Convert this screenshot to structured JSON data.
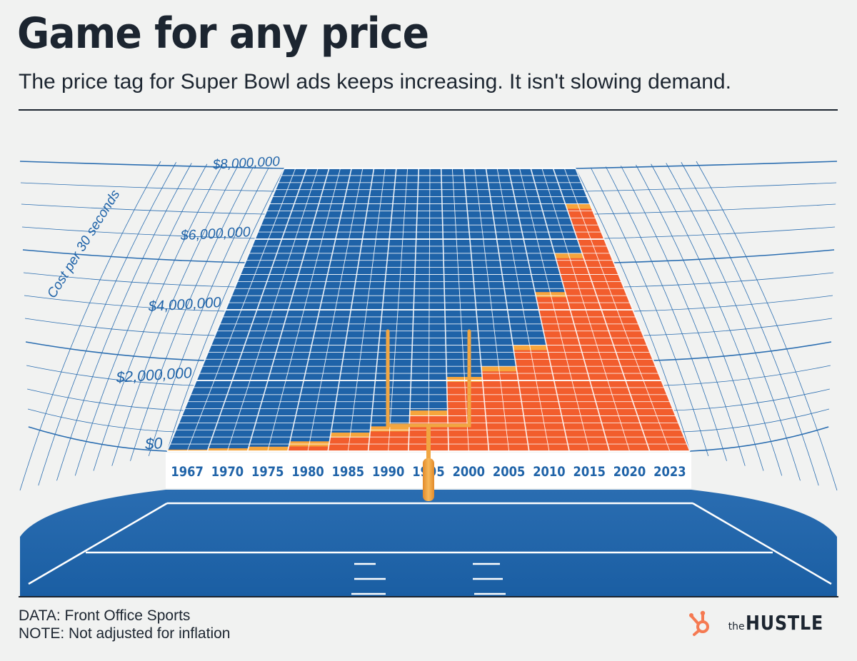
{
  "header": {
    "title": "Game for any price",
    "subtitle": "The price tag for Super Bowl ads keeps increasing. It isn't slowing demand."
  },
  "chart_data": {
    "type": "bar",
    "title": "Game for any price",
    "subtitle": "The price tag for Super Bowl ads keeps increasing. It isn't slowing demand.",
    "ylabel": "Cost per 30 seconds",
    "ylim": [
      0,
      8000000
    ],
    "y_ticks": [
      0,
      2000000,
      4000000,
      6000000,
      8000000
    ],
    "y_tick_labels": [
      "$0",
      "$2,000,000",
      "$4,000,000",
      "$6,000,000",
      "$8,000,000"
    ],
    "categories": [
      "1967",
      "1970",
      "1975",
      "1980",
      "1985",
      "1990",
      "1995",
      "2000",
      "2005",
      "2010",
      "2015",
      "2020",
      "2023"
    ],
    "values": [
      42000,
      78000,
      125000,
      275000,
      525000,
      700000,
      1150000,
      2100000,
      2400000,
      3000000,
      4500000,
      5600000,
      7000000
    ],
    "colors": {
      "bar": "#f25d2d",
      "bar_top": "#f6a53c",
      "grid_panel": "#1f63a8",
      "side_grid": "#2a6db0",
      "field": "#1e63a9",
      "goalpost": "#f1a642"
    },
    "grid": true,
    "legend": "none"
  },
  "footer": {
    "source": "DATA: Front Office Sports",
    "note": "NOTE: Not adjusted for inflation"
  },
  "brand": {
    "icon": "hubspot-sprocket-icon",
    "prefix": "the",
    "name": "HUSTLE",
    "color": "#f57a52"
  }
}
